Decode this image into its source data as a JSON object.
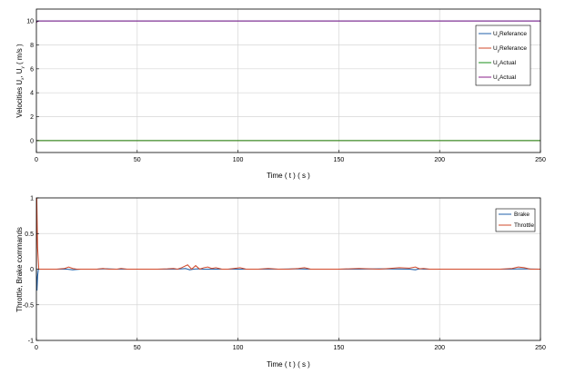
{
  "chart_data": [
    {
      "type": "line",
      "ylabel": "Velocities U",
      "ylabel_sub1": "x",
      "ylabel_mid": ", U",
      "ylabel_sub2": "y",
      "ylabel_unit": " ( m/s )",
      "xlabel": "Time ( t ) ( s )",
      "xlim": [
        0,
        250
      ],
      "ylim": [
        -1,
        11
      ],
      "xticks": [
        0,
        50,
        100,
        150,
        200,
        250
      ],
      "yticks": [
        0,
        2,
        4,
        6,
        8,
        10
      ],
      "grid": true,
      "legend_position": "top-right",
      "series": [
        {
          "name": "U",
          "name_sub": "x",
          "name_suffix": "Referance",
          "color": "#1f5fa8",
          "x": [
            0,
            250
          ],
          "y": [
            10,
            10
          ]
        },
        {
          "name": "U",
          "name_sub": "y",
          "name_suffix": "Referance",
          "color": "#d0482a",
          "x": [
            0,
            250
          ],
          "y": [
            0,
            0
          ]
        },
        {
          "name": "U",
          "name_sub": "y",
          "name_suffix": "Actual",
          "color": "#1a8f1a",
          "x": [
            0,
            250
          ],
          "y": [
            0,
            0
          ]
        },
        {
          "name": "U",
          "name_sub": "x",
          "name_suffix": "Actual",
          "color": "#8a1f8a",
          "x": [
            0,
            0.4,
            1,
            250
          ],
          "y": [
            9.85,
            9.95,
            10,
            10
          ]
        }
      ]
    },
    {
      "type": "line",
      "ylabel": "Throttle, Brake commands",
      "xlabel": "Time ( t ) ( s )",
      "xlim": [
        0,
        250
      ],
      "ylim": [
        -1,
        1
      ],
      "xticks": [
        0,
        50,
        100,
        150,
        200,
        250
      ],
      "yticks": [
        -1,
        -0.5,
        0,
        0.5,
        1
      ],
      "grid": true,
      "legend_position": "top-right",
      "series": [
        {
          "name": "Brake",
          "color": "#1f5fa8",
          "x": [
            0,
            0.3,
            0.6,
            1,
            10,
            15,
            18,
            22,
            30,
            35,
            40,
            70,
            74,
            76,
            78,
            80,
            82,
            100,
            120,
            130,
            135,
            160,
            170,
            185,
            188,
            190,
            192,
            200,
            235,
            240,
            250
          ],
          "y": [
            0,
            -0.3,
            -0.1,
            0,
            0,
            0,
            -0.01,
            0,
            0,
            0.005,
            0,
            0,
            0.01,
            -0.01,
            0,
            0.005,
            0,
            0,
            0,
            0.005,
            0,
            0,
            0.005,
            0,
            -0.01,
            0.005,
            0,
            0,
            0,
            0.005,
            0
          ]
        },
        {
          "name": "Throttle",
          "color": "#d0482a",
          "x": [
            0,
            0.2,
            0.6,
            1.2,
            10,
            14,
            16,
            18,
            20,
            25,
            30,
            33,
            36,
            40,
            42,
            45,
            60,
            65,
            68,
            70,
            72,
            75,
            77,
            79,
            81,
            83,
            85,
            87,
            89,
            92,
            95,
            98,
            101,
            104,
            110,
            115,
            120,
            125,
            130,
            133,
            136,
            140,
            150,
            160,
            165,
            170,
            175,
            180,
            185,
            188,
            190,
            192,
            195,
            200,
            210,
            230,
            236,
            239,
            242,
            245,
            250
          ],
          "y": [
            0,
            1,
            0.3,
            0,
            0,
            0.01,
            0.03,
            0.01,
            0,
            0,
            0,
            0.01,
            0,
            0,
            0.01,
            0,
            0,
            0.005,
            0.01,
            0,
            0.02,
            0.06,
            0,
            0.05,
            0,
            0.02,
            0.03,
            0.01,
            0.02,
            0,
            0,
            0.01,
            0.02,
            0,
            0,
            0.01,
            0,
            0,
            0.01,
            0.02,
            0,
            0,
            0,
            0.01,
            0.005,
            0,
            0.01,
            0.02,
            0.015,
            0.03,
            0.005,
            0.01,
            0,
            0,
            0,
            0,
            0.01,
            0.03,
            0.02,
            0,
            0
          ]
        }
      ]
    }
  ]
}
